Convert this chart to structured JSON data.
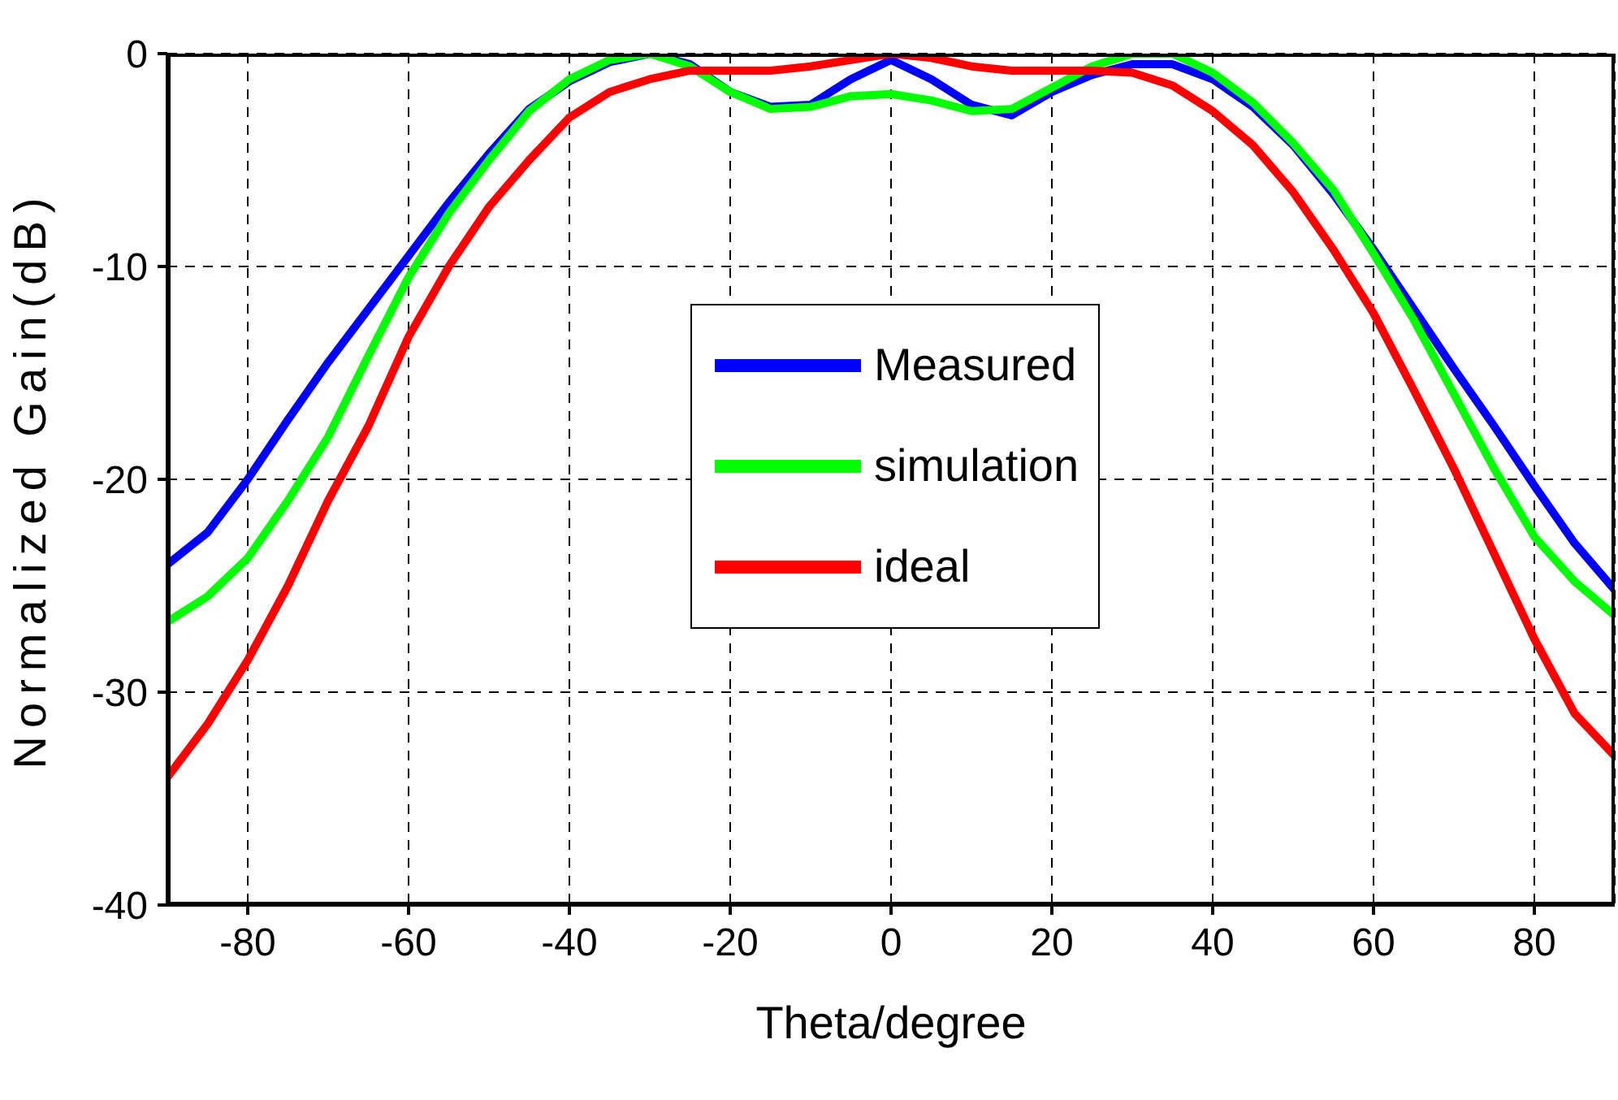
{
  "chart_data": {
    "type": "line",
    "xlabel": "Theta/degree",
    "ylabel": "Normalized Gain(dB)",
    "x": [
      -90,
      -85,
      -80,
      -75,
      -70,
      -65,
      -60,
      -55,
      -50,
      -45,
      -40,
      -35,
      -30,
      -25,
      -20,
      -15,
      -10,
      -5,
      0,
      5,
      10,
      15,
      20,
      25,
      30,
      35,
      40,
      45,
      50,
      55,
      60,
      65,
      70,
      75,
      80,
      85,
      90
    ],
    "series": [
      {
        "name": "Measured",
        "color": "#0000ff",
        "values": [
          -24,
          -22.5,
          -20,
          -17.2,
          -14.5,
          -12,
          -9.5,
          -7,
          -4.7,
          -2.6,
          -1.3,
          -0.4,
          0,
          -0.5,
          -1.8,
          -2.5,
          -2.4,
          -1.2,
          -0.3,
          -1.2,
          -2.4,
          -2.9,
          -1.8,
          -1,
          -0.5,
          -0.5,
          -1.2,
          -2.5,
          -4.3,
          -6.6,
          -9.2,
          -12,
          -14.8,
          -17.5,
          -20.3,
          -23,
          -25.2
        ]
      },
      {
        "name": "simulation",
        "color": "#00ff00",
        "values": [
          -26.7,
          -25.5,
          -23.7,
          -21,
          -18,
          -14.2,
          -10.5,
          -7.5,
          -5,
          -2.7,
          -1.2,
          -0.3,
          0,
          -0.6,
          -1.8,
          -2.6,
          -2.5,
          -2,
          -1.9,
          -2.2,
          -2.7,
          -2.6,
          -1.6,
          -0.6,
          0,
          0,
          -0.9,
          -2.3,
          -4.2,
          -6.4,
          -9.4,
          -12.5,
          -16,
          -19.5,
          -22.7,
          -24.8,
          -26.4
        ]
      },
      {
        "name": "ideal",
        "color": "#ff0000",
        "values": [
          -34,
          -31.5,
          -28.5,
          -25,
          -21,
          -17.5,
          -13.3,
          -10,
          -7.2,
          -5,
          -3,
          -1.8,
          -1.2,
          -0.8,
          -0.8,
          -0.8,
          -0.6,
          -0.3,
          0,
          -0.2,
          -0.6,
          -0.8,
          -0.8,
          -0.8,
          -0.9,
          -1.5,
          -2.7,
          -4.3,
          -6.5,
          -9.2,
          -12.2,
          -15.8,
          -19.5,
          -23.5,
          -27.5,
          -31,
          -33
        ]
      }
    ],
    "xlim": [
      -90,
      90
    ],
    "xticks": [
      -80,
      -60,
      -40,
      -20,
      0,
      20,
      40,
      60,
      80
    ],
    "ylim": [
      -40,
      0
    ],
    "yticks": [
      -40,
      -30,
      -20,
      -10,
      0
    ],
    "grid": true,
    "legend": "center",
    "marker": "none",
    "line_style": "solid"
  }
}
